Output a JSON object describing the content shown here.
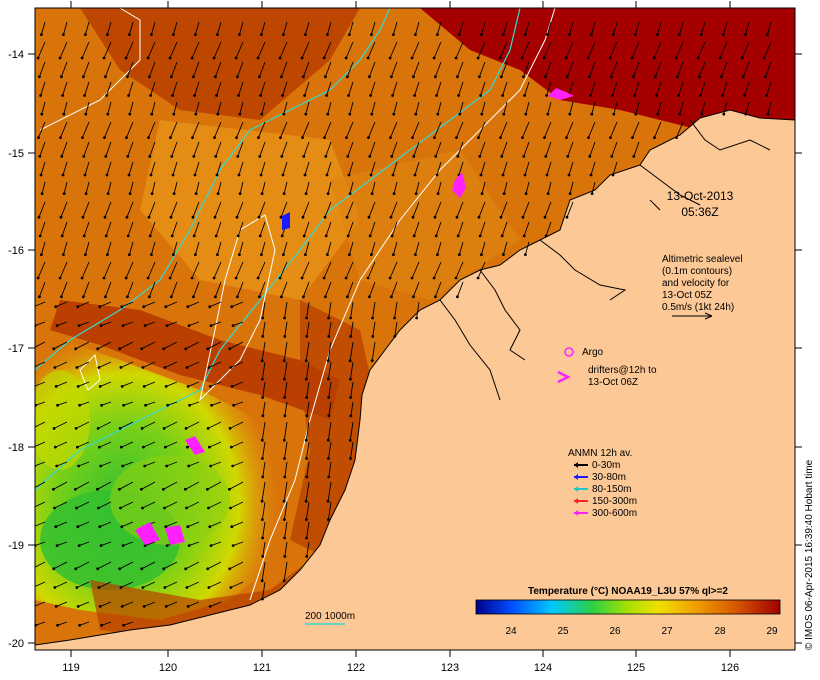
{
  "map": {
    "lat_ticks": [
      "-14",
      "-15",
      "-16",
      "-17",
      "-18",
      "-19",
      "-20"
    ],
    "lon_ticks": [
      "119",
      "120",
      "121",
      "122",
      "123",
      "124",
      "125",
      "126"
    ],
    "timestamp_date": "13-Oct-2013",
    "timestamp_time": "05:36Z",
    "altimetry_lines": [
      "Altimetric sealevel",
      "(0.1m contours)",
      "and velocity for",
      "13-Oct 05Z",
      "0.5m/s (1kt 24h)"
    ],
    "argo_label": "Argo",
    "drifters_lines": [
      "drifters@12h to",
      "13-Oct 06Z"
    ],
    "anmn_title": "ANMN 12h av.",
    "anmn_items": [
      {
        "label": "0-30m",
        "color": "#000000"
      },
      {
        "label": "30-80m",
        "color": "#1a1aff"
      },
      {
        "label": "80-150m",
        "color": "#22c8c8"
      },
      {
        "label": "150-300m",
        "color": "#ff2020"
      },
      {
        "label": "300-600m",
        "color": "#ff20ff"
      }
    ],
    "scale_label": "200  1000m",
    "colorbar_title": "Temperature (°C) NOAA19_L3U 57% ql>=2",
    "colorbar_ticks": [
      "24",
      "25",
      "26",
      "27",
      "28",
      "29"
    ],
    "credit": "© IMOS 06-Apr-2015 16:39:40 Hobart time",
    "colors": {
      "land": "#fcc896",
      "warm": "#c84a00",
      "hot": "#a40000",
      "mid": "#e07f0c",
      "cool": "#c8d800",
      "cold": "#38c828",
      "contour": "#38d8d0"
    }
  }
}
